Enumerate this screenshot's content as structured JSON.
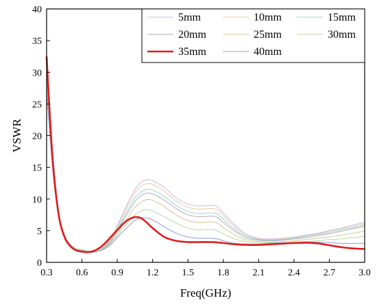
{
  "chart_data": {
    "type": "line",
    "title": "",
    "xlabel": "Freq(GHz)",
    "ylabel": "VSWR",
    "xlim": [
      0.3,
      3.0
    ],
    "ylim": [
      0,
      40
    ],
    "x_ticks": [
      "0.3",
      "0.6",
      "0.9",
      "1.2",
      "1.5",
      "1.8",
      "2.1",
      "2.4",
      "2.7",
      "3.0"
    ],
    "x_tick_values": [
      0.3,
      0.6,
      0.9,
      1.2,
      1.5,
      1.8,
      2.1,
      2.4,
      2.7,
      3.0
    ],
    "y_ticks": [
      "0",
      "5",
      "10",
      "15",
      "20",
      "25",
      "30",
      "35",
      "40"
    ],
    "y_tick_values": [
      0,
      5,
      10,
      15,
      20,
      25,
      30,
      35,
      40
    ],
    "grid": false,
    "legend_position": "top-right",
    "x": [
      0.3,
      0.35,
      0.4,
      0.45,
      0.5,
      0.55,
      0.6,
      0.65,
      0.7,
      0.75,
      0.8,
      0.85,
      0.9,
      0.95,
      1.0,
      1.05,
      1.1,
      1.15,
      1.2,
      1.3,
      1.4,
      1.5,
      1.6,
      1.7,
      1.75,
      1.8,
      1.9,
      2.0,
      2.1,
      2.2,
      2.3,
      2.4,
      2.5,
      2.6,
      2.7,
      2.8,
      2.9,
      3.0
    ],
    "series": [
      {
        "name": "5mm",
        "color": "#c9b8ea",
        "values": [
          30,
          18,
          8.5,
          4.5,
          2.9,
          2.2,
          2.0,
          1.8,
          1.7,
          2.0,
          2.8,
          4.0,
          5.8,
          7.8,
          9.8,
          11.5,
          12.6,
          13.0,
          12.9,
          11.8,
          10.2,
          9.2,
          8.9,
          9.0,
          8.8,
          7.8,
          5.9,
          4.4,
          3.8,
          3.7,
          3.8,
          4.0,
          4.3,
          4.6,
          5.0,
          5.4,
          5.9,
          6.3
        ]
      },
      {
        "name": "10mm",
        "color": "#e8c9a0",
        "values": [
          29.5,
          17.5,
          8.3,
          4.4,
          2.8,
          2.2,
          2.0,
          1.8,
          1.7,
          2.0,
          2.7,
          3.9,
          5.6,
          7.5,
          9.4,
          11.0,
          12.0,
          12.4,
          12.3,
          11.2,
          9.7,
          8.7,
          8.4,
          8.5,
          8.3,
          7.4,
          5.6,
          4.2,
          3.7,
          3.6,
          3.7,
          3.9,
          4.2,
          4.5,
          4.9,
          5.3,
          5.7,
          6.1
        ]
      },
      {
        "name": "15mm",
        "color": "#8fd8d8",
        "values": [
          29,
          17,
          8.1,
          4.3,
          2.8,
          2.2,
          2.0,
          1.8,
          1.7,
          2.0,
          2.6,
          3.7,
          5.3,
          7.0,
          8.7,
          10.2,
          11.1,
          11.5,
          11.4,
          10.4,
          9.0,
          8.0,
          7.7,
          7.8,
          7.6,
          6.8,
          5.2,
          4.0,
          3.6,
          3.5,
          3.6,
          3.8,
          4.1,
          4.4,
          4.7,
          5.1,
          5.5,
          5.9
        ]
      },
      {
        "name": "20mm",
        "color": "#b0a8b8",
        "values": [
          28.5,
          16.5,
          7.9,
          4.2,
          2.7,
          2.1,
          1.9,
          1.8,
          1.7,
          1.9,
          2.5,
          3.5,
          5.0,
          6.6,
          8.2,
          9.6,
          10.5,
          10.9,
          10.8,
          9.8,
          8.5,
          7.5,
          7.2,
          7.3,
          7.1,
          6.3,
          4.9,
          3.8,
          3.5,
          3.4,
          3.5,
          3.7,
          3.9,
          4.2,
          4.5,
          4.9,
          5.3,
          5.7
        ]
      },
      {
        "name": "25mm",
        "color": "#cfc890",
        "values": [
          28,
          16,
          7.7,
          4.1,
          2.7,
          2.1,
          1.9,
          1.7,
          1.7,
          1.9,
          2.4,
          3.3,
          4.6,
          6.0,
          7.4,
          8.7,
          9.5,
          9.9,
          9.8,
          8.8,
          7.5,
          6.6,
          6.3,
          6.4,
          6.2,
          5.5,
          4.3,
          3.5,
          3.3,
          3.2,
          3.3,
          3.4,
          3.6,
          3.8,
          4.0,
          4.3,
          4.6,
          4.9
        ]
      },
      {
        "name": "30mm",
        "color": "#b8d8a8",
        "values": [
          27.5,
          15.5,
          7.5,
          4.0,
          2.6,
          2.1,
          1.9,
          1.7,
          1.7,
          1.9,
          2.3,
          3.1,
          4.2,
          5.4,
          6.5,
          7.5,
          8.1,
          8.3,
          8.1,
          7.2,
          6.2,
          5.4,
          5.1,
          5.2,
          5.0,
          4.5,
          3.7,
          3.2,
          3.1,
          3.1,
          3.1,
          3.2,
          3.3,
          3.4,
          3.6,
          3.7,
          3.9,
          4.1
        ]
      },
      {
        "name": "35mm",
        "color": "#e11b1b",
        "values": [
          32.5,
          16.5,
          7.8,
          4.1,
          2.6,
          1.9,
          1.7,
          1.6,
          1.8,
          2.3,
          3.1,
          4.1,
          5.1,
          6.1,
          6.8,
          7.15,
          7.0,
          6.3,
          5.4,
          4.0,
          3.4,
          3.2,
          3.2,
          3.2,
          3.15,
          3.05,
          2.85,
          2.75,
          2.75,
          2.85,
          2.95,
          3.05,
          3.1,
          3.0,
          2.7,
          2.4,
          2.2,
          2.1
        ]
      },
      {
        "name": "40mm",
        "color": "#8c9ad8",
        "values": [
          27,
          15,
          7.3,
          3.9,
          2.5,
          2.0,
          1.8,
          1.6,
          1.6,
          1.8,
          2.2,
          2.9,
          3.9,
          4.9,
          5.8,
          6.6,
          7.0,
          7.0,
          6.7,
          5.6,
          4.6,
          4.0,
          3.8,
          3.8,
          3.7,
          3.4,
          3.0,
          2.9,
          2.9,
          3.0,
          3.1,
          3.1,
          3.2,
          3.2,
          3.1,
          3.0,
          3.0,
          3.0
        ]
      }
    ]
  }
}
